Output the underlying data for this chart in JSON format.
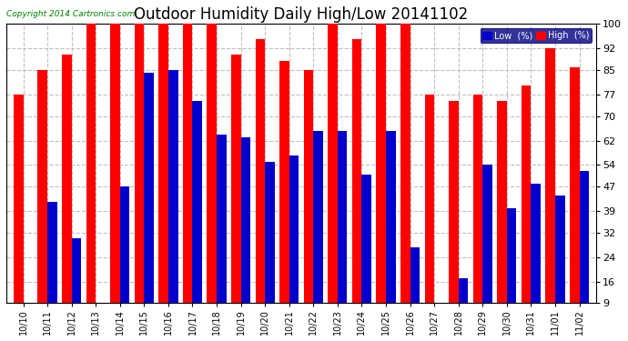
{
  "title": "Outdoor Humidity Daily High/Low 20141102",
  "copyright": "Copyright 2014 Cartronics.com",
  "dates": [
    "10/10",
    "10/11",
    "10/12",
    "10/13",
    "10/14",
    "10/15",
    "10/16",
    "10/17",
    "10/18",
    "10/19",
    "10/20",
    "10/21",
    "10/22",
    "10/23",
    "10/24",
    "10/25",
    "10/26",
    "10/27",
    "10/28",
    "10/29",
    "10/30",
    "10/31",
    "11/01",
    "11/02"
  ],
  "high": [
    77,
    85,
    90,
    100,
    100,
    100,
    100,
    100,
    100,
    90,
    95,
    88,
    85,
    100,
    95,
    100,
    100,
    77,
    75,
    77,
    75,
    80,
    92,
    86
  ],
  "low": [
    9,
    42,
    30,
    9,
    47,
    84,
    85,
    75,
    64,
    63,
    55,
    57,
    65,
    65,
    51,
    65,
    27,
    9,
    17,
    54,
    40,
    48,
    44,
    52
  ],
  "ylim_min": 9,
  "ylim_max": 100,
  "yticks": [
    9,
    16,
    24,
    32,
    39,
    47,
    54,
    62,
    70,
    77,
    85,
    92,
    100
  ],
  "high_color": "#ff0000",
  "low_color": "#0000cc",
  "bg_color": "#ffffff",
  "grid_color": "#b0b0b0",
  "title_fontsize": 12,
  "bar_width": 0.4,
  "figwidth": 6.9,
  "figheight": 3.75,
  "dpi": 100
}
